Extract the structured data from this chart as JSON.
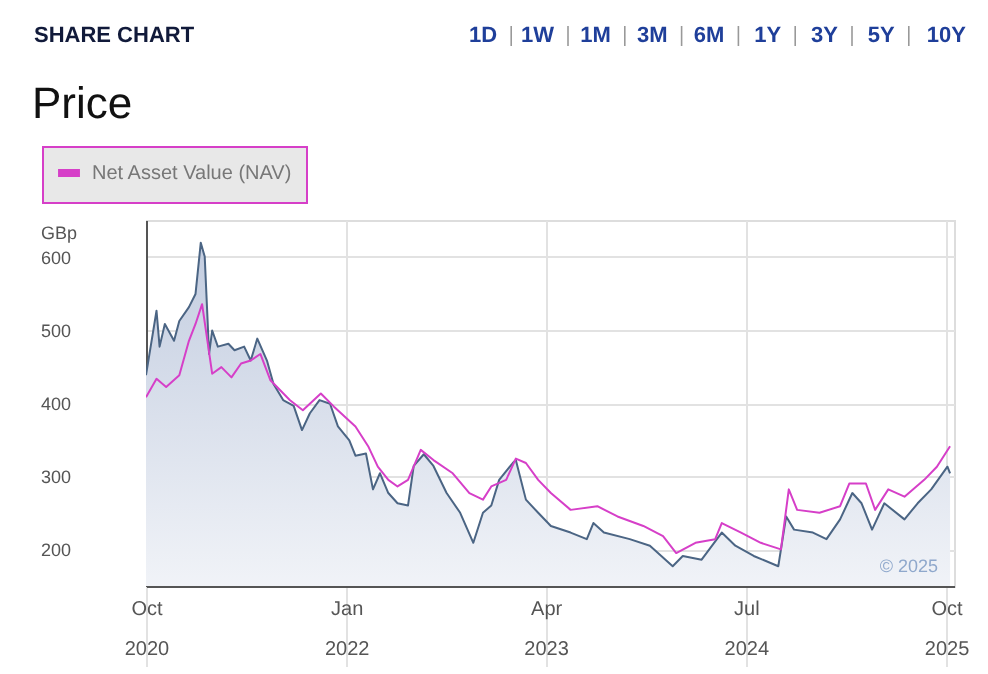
{
  "chart_data": {
    "type": "line",
    "title": "SHARE CHART",
    "subtitle": "Price",
    "ylabel": "GBp",
    "annotations": [
      "1D",
      "1W",
      "1M",
      "3M",
      "6M",
      "1Y",
      "3Y",
      "5Y",
      "10Y",
      "© 2025"
    ],
    "xlim": [
      "2020-10-01",
      "2025-10-19"
    ],
    "xticks": [
      {
        "value": "2020-10-01",
        "label": "Oct 2020"
      },
      {
        "value": "2022-01-01",
        "label": "Jan 2022"
      },
      {
        "value": "2023-04-01",
        "label": "Apr 2023"
      },
      {
        "value": "2024-07-01",
        "label": "Jul 2024"
      },
      {
        "value": "2025-10-01",
        "label": "Oct 2025"
      }
    ],
    "ylim": [
      150,
      650
    ],
    "yticks": [
      200,
      300,
      400,
      500,
      600
    ],
    "grid": true,
    "legend": "top left",
    "series": [
      {
        "type": "area",
        "color": "#4b6584",
        "x": [
          "2020-10-01",
          "2020-10-25",
          "2020-11-01",
          "2020-11-13",
          "2020-12-04",
          "2020-12-16",
          "2021-01-07",
          "2021-01-22",
          "2021-02-03",
          "2021-02-12",
          "2021-02-22",
          "2021-03-01",
          "2021-03-14",
          "2021-04-07",
          "2021-04-21",
          "2021-05-13",
          "2021-05-28",
          "2021-06-12",
          "2021-07-04",
          "2021-07-19",
          "2021-08-10",
          "2021-09-03",
          "2021-09-22",
          "2021-10-10",
          "2021-11-01",
          "2021-11-25",
          "2021-12-13",
          "2022-01-08",
          "2022-01-22",
          "2022-02-15",
          "2022-03-03",
          "2022-03-19",
          "2022-04-07",
          "2022-04-28",
          "2022-05-22",
          "2022-06-04",
          "2022-06-27",
          "2022-07-19",
          "2022-08-18",
          "2022-09-18",
          "2022-10-18",
          "2022-11-09",
          "2022-11-28",
          "2022-12-16",
          "2023-01-16",
          "2023-01-23",
          "2023-02-15",
          "2023-03-15",
          "2023-04-13",
          "2023-05-28",
          "2023-07-04",
          "2023-07-19",
          "2023-08-12",
          "2023-10-10",
          "2023-11-25",
          "2024-01-16",
          "2024-02-08",
          "2024-03-22",
          "2024-05-07",
          "2024-06-07",
          "2024-07-19",
          "2024-09-13",
          "2024-10-01",
          "2024-10-19",
          "2024-12-01",
          "2025-01-01",
          "2025-02-01",
          "2025-03-01",
          "2025-03-22",
          "2025-04-15",
          "2025-05-13",
          "2025-06-28",
          "2025-07-28",
          "2025-08-28",
          "2025-10-04",
          "2025-10-10"
        ],
        "values": [
          438,
          526,
          477,
          508,
          485,
          512,
          531,
          549,
          619,
          600,
          467,
          499,
          477,
          481,
          472,
          477,
          458,
          488,
          458,
          426,
          404,
          396,
          363,
          386,
          404,
          399,
          368,
          349,
          328,
          331,
          282,
          304,
          277,
          263,
          260,
          314,
          330,
          314,
          277,
          250,
          209,
          250,
          260,
          295,
          318,
          322,
          268,
          250,
          232,
          223,
          214,
          236,
          223,
          214,
          205,
          177,
          191,
          186,
          223,
          205,
          191,
          177,
          245,
          227,
          223,
          214,
          241,
          277,
          263,
          227,
          263,
          241,
          263,
          282,
          313,
          304
        ]
      },
      {
        "name": "Net Asset Value (NAV)",
        "color": "#d63fc8",
        "x": [
          "2020-10-01",
          "2020-10-25",
          "2020-11-16",
          "2020-12-16",
          "2021-01-07",
          "2021-01-22",
          "2021-02-06",
          "2021-03-01",
          "2021-03-22",
          "2021-04-14",
          "2021-05-06",
          "2021-05-28",
          "2021-06-19",
          "2021-07-12",
          "2021-08-25",
          "2021-09-24",
          "2021-11-04",
          "2021-12-04",
          "2022-01-22",
          "2022-02-20",
          "2022-03-14",
          "2022-04-07",
          "2022-04-28",
          "2022-05-22",
          "2022-06-20",
          "2022-07-19",
          "2022-09-01",
          "2022-10-09",
          "2022-11-09",
          "2022-11-28",
          "2023-01-01",
          "2023-01-23",
          "2023-02-15",
          "2023-03-15",
          "2023-04-13",
          "2023-05-28",
          "2023-07-28",
          "2023-09-12",
          "2023-11-10",
          "2023-12-25",
          "2024-01-24",
          "2024-03-08",
          "2024-04-22",
          "2024-05-07",
          "2024-06-20",
          "2024-08-04",
          "2024-09-19",
          "2024-10-07",
          "2024-10-26",
          "2024-12-16",
          "2025-02-01",
          "2025-02-22",
          "2025-04-01",
          "2025-04-22",
          "2025-05-22",
          "2025-06-28",
          "2025-08-12",
          "2025-09-10",
          "2025-10-10"
        ],
        "values": [
          408,
          433,
          422,
          438,
          485,
          508,
          535,
          440,
          449,
          435,
          454,
          458,
          467,
          431,
          404,
          390,
          413,
          395,
          368,
          341,
          313,
          295,
          286,
          295,
          336,
          322,
          304,
          277,
          268,
          286,
          295,
          324,
          318,
          295,
          277,
          254,
          259,
          245,
          232,
          218,
          195,
          209,
          214,
          236,
          223,
          209,
          200,
          282,
          254,
          250,
          259,
          290,
          290,
          254,
          282,
          272,
          295,
          313,
          341
        ]
      }
    ]
  }
}
